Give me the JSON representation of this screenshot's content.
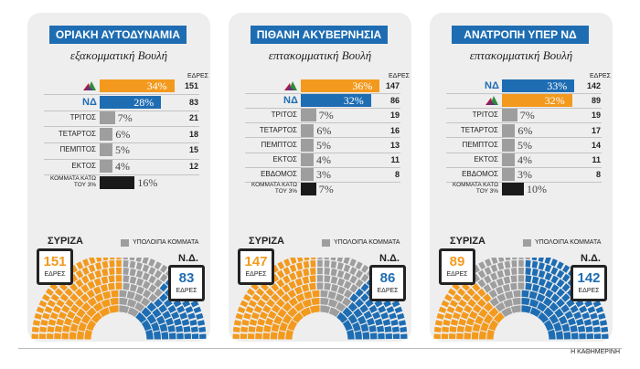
{
  "colors": {
    "syriza": "#f39a1e",
    "nd": "#1e6db3",
    "other": "#9e9e9e",
    "black": "#1a1a1a",
    "header": "#1e6db3"
  },
  "seats_col_label": "ΕΔΡΕΣ",
  "seats_word": "ΕΔΡΕΣ",
  "others_legend": "ΥΠΟΛΟΙΠΑ ΚΟΜΜΑΤΑ",
  "source": "Η ΚΑΘΗΜΕΡΙΝΗ",
  "chart_data": [
    {
      "type": "bar",
      "title": "ΟΡΙΑΚΗ ΑΥΤΟΔΥΝΑΜΙΑ",
      "subtitle": "εξακομματική Βουλή",
      "rows": [
        {
          "party": "syriza",
          "label": "",
          "pct": 34,
          "pct_text": "34%",
          "seats": "151",
          "color": "#f39a1e"
        },
        {
          "party": "nd",
          "label": "ΝΔ",
          "pct": 28,
          "pct_text": "28%",
          "seats": "83",
          "color": "#1e6db3"
        },
        {
          "label": "ΤΡΙΤΟΣ",
          "pct": 7,
          "pct_text": "7%",
          "seats": "21",
          "color": "#9e9e9e"
        },
        {
          "label": "ΤΕΤΑΡΤΟΣ",
          "pct": 6,
          "pct_text": "6%",
          "seats": "18",
          "color": "#9e9e9e"
        },
        {
          "label": "ΠΕΜΠΤΟΣ",
          "pct": 5,
          "pct_text": "5%",
          "seats": "15",
          "color": "#9e9e9e"
        },
        {
          "label": "ΕΚΤΟΣ",
          "pct": 4,
          "pct_text": "4%",
          "seats": "12",
          "color": "#9e9e9e"
        },
        {
          "label": "ΚΟΜΜΑΤΑ ΚΑΤΩ ΤΟΥ 3%",
          "pct": 16,
          "pct_text": "16%",
          "seats": "",
          "color": "#1a1a1a"
        }
      ],
      "hemicycle": {
        "left_party": "ΣΥΡΙΖΑ",
        "left_seats": "151",
        "right_party": "Ν.Δ.",
        "right_seats": "83",
        "left_count": 151,
        "other_count": 66,
        "right_count": 83,
        "left_color": "#f39a1e",
        "right_color": "#1e6db3"
      }
    },
    {
      "type": "bar",
      "title": "ΠΙΘΑΝΗ ΑΚΥΒΕΡΝΗΣΙΑ",
      "subtitle": "επτακομματική Βουλή",
      "rows": [
        {
          "party": "syriza",
          "label": "",
          "pct": 36,
          "pct_text": "36%",
          "seats": "147",
          "color": "#f39a1e"
        },
        {
          "party": "nd",
          "label": "ΝΔ",
          "pct": 32,
          "pct_text": "32%",
          "seats": "86",
          "color": "#1e6db3"
        },
        {
          "label": "ΤΡΙΤΟΣ",
          "pct": 7,
          "pct_text": "7%",
          "seats": "19",
          "color": "#9e9e9e"
        },
        {
          "label": "ΤΕΤΑΡΤΟΣ",
          "pct": 6,
          "pct_text": "6%",
          "seats": "16",
          "color": "#9e9e9e"
        },
        {
          "label": "ΠΕΜΠΤΟΣ",
          "pct": 5,
          "pct_text": "5%",
          "seats": "13",
          "color": "#9e9e9e"
        },
        {
          "label": "ΕΚΤΟΣ",
          "pct": 4,
          "pct_text": "4%",
          "seats": "11",
          "color": "#9e9e9e"
        },
        {
          "label": "ΕΒΔΟΜΟΣ",
          "pct": 3,
          "pct_text": "3%",
          "seats": "8",
          "color": "#9e9e9e"
        },
        {
          "label": "ΚΟΜΜΑΤΑ ΚΑΤΩ ΤΟΥ 3%",
          "pct": 7,
          "pct_text": "7%",
          "seats": "",
          "color": "#1a1a1a"
        }
      ],
      "hemicycle": {
        "left_party": "ΣΥΡΙΖΑ",
        "left_seats": "147",
        "right_party": "Ν.Δ.",
        "right_seats": "86",
        "left_count": 147,
        "other_count": 67,
        "right_count": 86,
        "left_color": "#f39a1e",
        "right_color": "#1e6db3"
      }
    },
    {
      "type": "bar",
      "title": "ΑΝΑΤΡΟΠΗ ΥΠΕΡ ΝΔ",
      "subtitle": "επτακομματική Βουλή",
      "rows": [
        {
          "party": "nd",
          "label": "ΝΔ",
          "pct": 33,
          "pct_text": "33%",
          "seats": "142",
          "color": "#1e6db3"
        },
        {
          "party": "syriza",
          "label": "",
          "pct": 32,
          "pct_text": "32%",
          "seats": "89",
          "color": "#f39a1e"
        },
        {
          "label": "ΤΡΙΤΟΣ",
          "pct": 7,
          "pct_text": "7%",
          "seats": "19",
          "color": "#9e9e9e"
        },
        {
          "label": "ΤΕΤΑΡΤΟΣ",
          "pct": 6,
          "pct_text": "6%",
          "seats": "17",
          "color": "#9e9e9e"
        },
        {
          "label": "ΠΕΜΠΤΟΣ",
          "pct": 5,
          "pct_text": "5%",
          "seats": "14",
          "color": "#9e9e9e"
        },
        {
          "label": "ΕΚΤΟΣ",
          "pct": 4,
          "pct_text": "4%",
          "seats": "11",
          "color": "#9e9e9e"
        },
        {
          "label": "ΕΒΔΟΜΟΣ",
          "pct": 3,
          "pct_text": "3%",
          "seats": "8",
          "color": "#9e9e9e"
        },
        {
          "label": "ΚΟΜΜΑΤΑ ΚΑΤΩ ΤΟΥ 3%",
          "pct": 10,
          "pct_text": "10%",
          "seats": "",
          "color": "#1a1a1a"
        }
      ],
      "hemicycle": {
        "left_party": "ΣΥΡΙΖΑ",
        "left_seats": "89",
        "right_party": "Ν.Δ.",
        "right_seats": "142",
        "left_count": 89,
        "other_count": 69,
        "right_count": 142,
        "left_color": "#f39a1e",
        "right_color": "#1e6db3"
      }
    }
  ]
}
